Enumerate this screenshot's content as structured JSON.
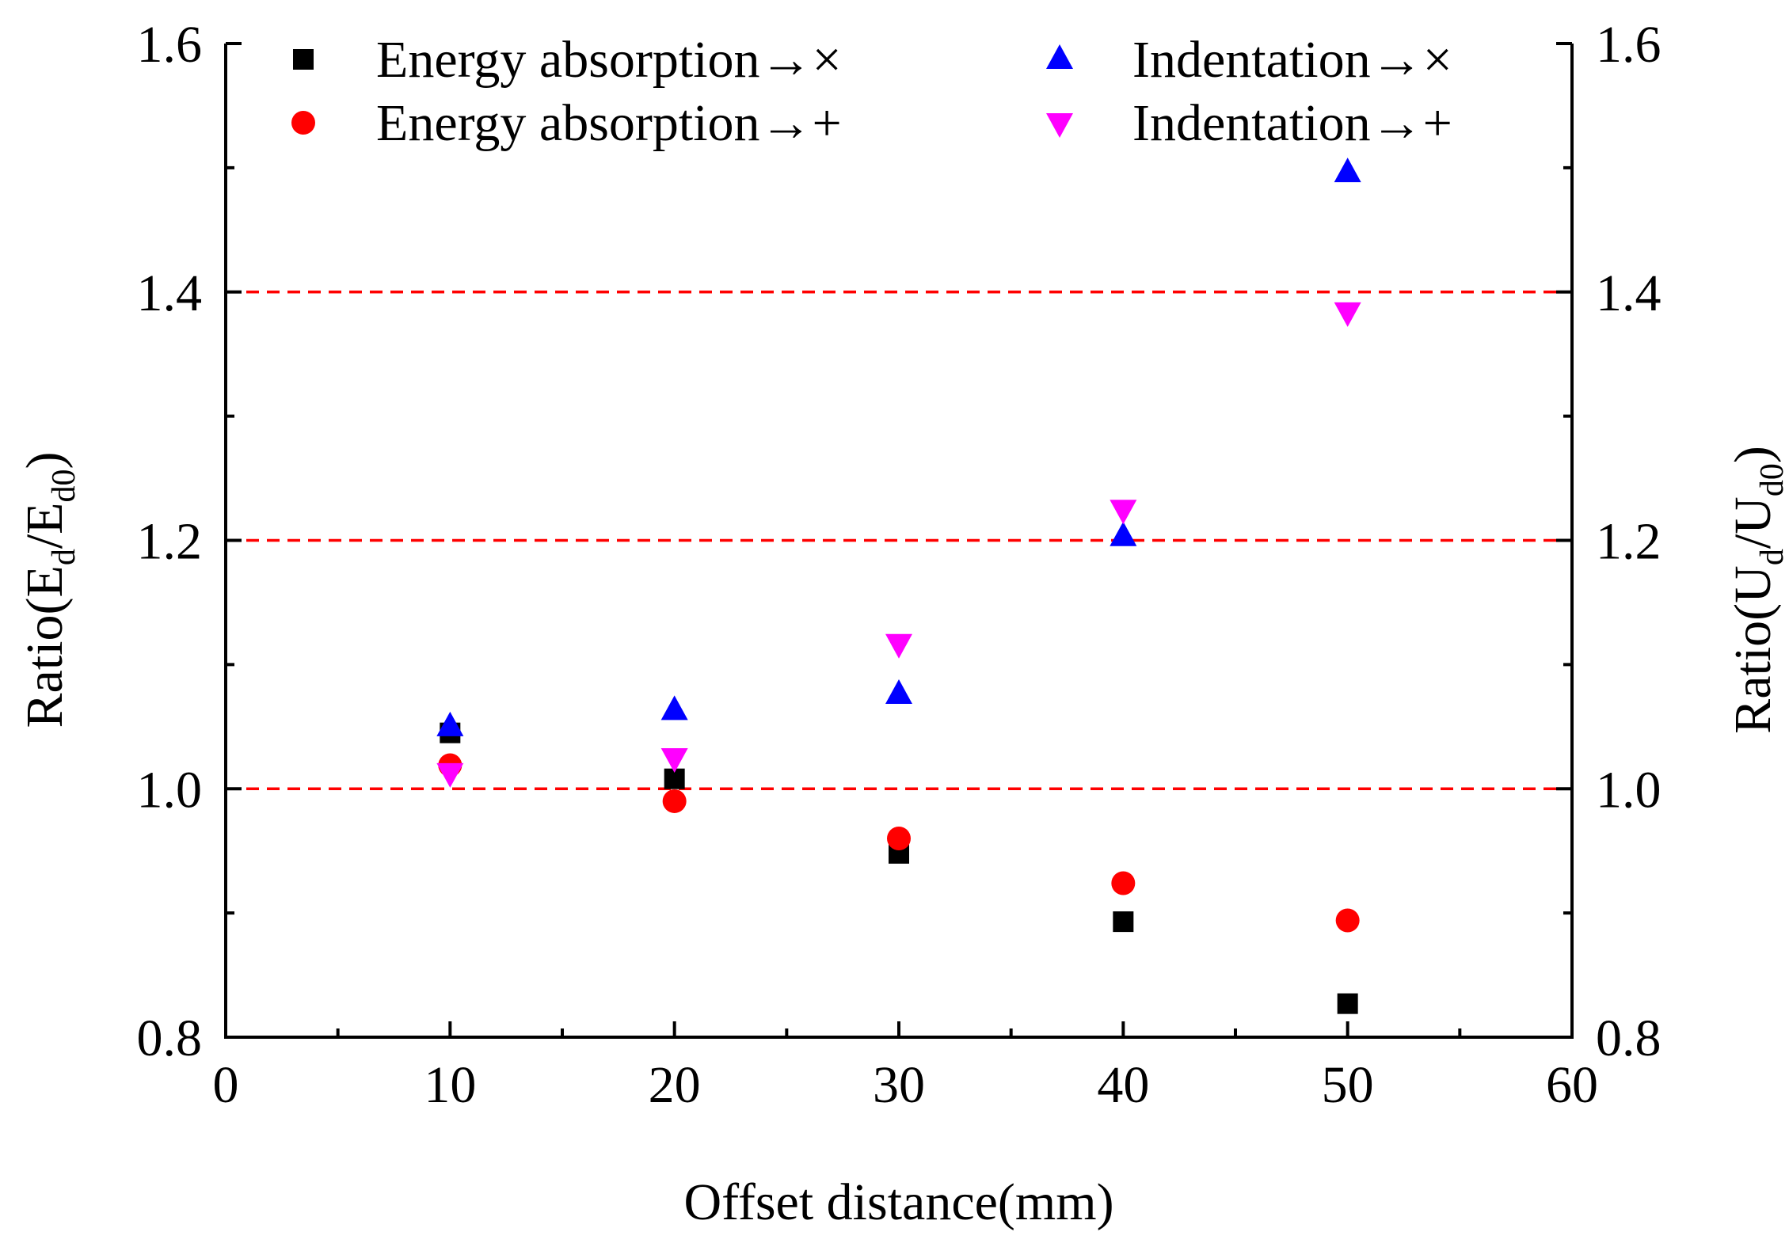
{
  "chart_data": {
    "type": "scatter",
    "x_axis": {
      "label": "Offset distance(mm)",
      "range": [
        0,
        60
      ],
      "ticks": [
        0,
        10,
        20,
        30,
        40,
        50,
        60
      ],
      "tick_labels": [
        "0",
        "10",
        "20",
        "30",
        "40",
        "50",
        "60"
      ]
    },
    "y_axis_left": {
      "label_parts": {
        "prefix": "Ratio(E",
        "sub1": "d",
        "mid": "/E",
        "sub2": "d0",
        "suffix": ")"
      },
      "range": [
        0.8,
        1.6
      ],
      "ticks": [
        0.8,
        1.0,
        1.2,
        1.4,
        1.6
      ],
      "tick_labels": [
        "0.8",
        "1.0",
        "1.2",
        "1.4",
        "1.6"
      ]
    },
    "y_axis_right": {
      "label_parts": {
        "prefix": "Ratio(U",
        "sub1": "d",
        "mid": "/U",
        "sub2": "d0",
        "suffix": ")"
      },
      "range": [
        0.8,
        1.6
      ],
      "ticks": [
        0.8,
        1.0,
        1.2,
        1.4,
        1.6
      ],
      "tick_labels": [
        "0.8",
        "1.0",
        "1.2",
        "1.4",
        "1.6"
      ]
    },
    "reference_lines": [
      1.0,
      1.2,
      1.4
    ],
    "reference_line_color": "#ff0000",
    "legend_position": "top",
    "series": [
      {
        "name": "Energy absorption→×",
        "marker": "square",
        "color": "#000000",
        "x": [
          10,
          20,
          30,
          40,
          50
        ],
        "y": [
          1.045,
          1.008,
          0.948,
          0.893,
          0.827
        ]
      },
      {
        "name": "Energy absorption→+",
        "marker": "circle",
        "color": "#ff0000",
        "x": [
          10,
          20,
          30,
          40,
          50
        ],
        "y": [
          1.019,
          0.99,
          0.96,
          0.924,
          0.894
        ]
      },
      {
        "name": "Indentation→×",
        "marker": "triangle-up",
        "color": "#0000ff",
        "x": [
          10,
          20,
          30,
          40,
          50
        ],
        "y": [
          1.05,
          1.063,
          1.076,
          1.203,
          1.496
        ]
      },
      {
        "name": "Indentation→+",
        "marker": "triangle-down",
        "color": "#ff00ff",
        "x": [
          10,
          20,
          30,
          40,
          50
        ],
        "y": [
          1.013,
          1.025,
          1.117,
          1.225,
          1.384
        ]
      }
    ]
  }
}
